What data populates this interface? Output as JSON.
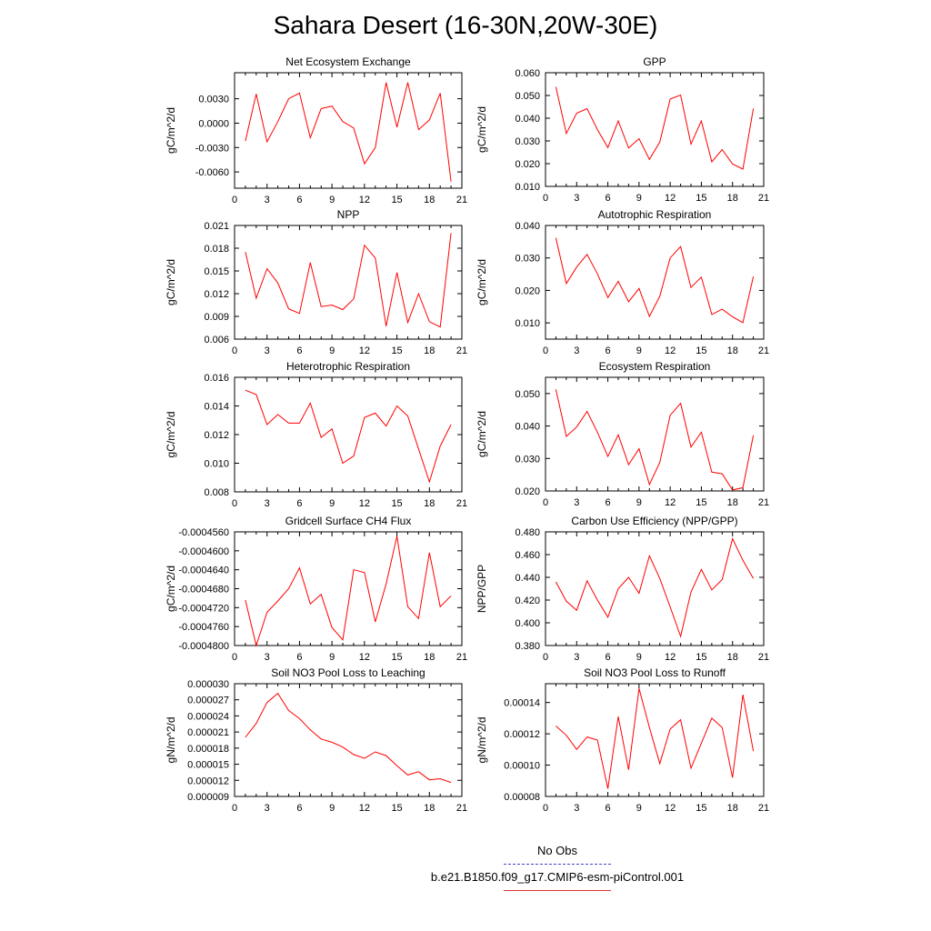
{
  "title": "Sahara Desert (16-30N,20W-30E)",
  "legend": {
    "entries": [
      {
        "label": "No Obs",
        "color": "#4444cc",
        "style": "dashed"
      },
      {
        "label": "b.e21.B1850.f09_g17.CMIP6-esm-piControl.001",
        "color": "#dd3333",
        "style": "solid"
      }
    ]
  },
  "chart_data": [
    {
      "type": "line",
      "title": "Net Ecosystem Exchange",
      "ylabel": "gC/m^2/d",
      "xlim": [
        0,
        21
      ],
      "xticks": [
        "0",
        "3",
        "6",
        "9",
        "12",
        "15",
        "18",
        "21"
      ],
      "ylim": [
        -0.008,
        0.0062
      ],
      "yticks": [
        "-0.0060",
        "-0.0030",
        "0.0000",
        "0.0030"
      ],
      "ytick_values": [
        -0.006,
        -0.003,
        0.0,
        0.003
      ],
      "series": [
        {
          "color": "#ff0000",
          "x": [
            1,
            2,
            3,
            4,
            5,
            6,
            7,
            8,
            9,
            10,
            11,
            12,
            13,
            14,
            15,
            16,
            17,
            18,
            19,
            20
          ],
          "y": [
            -0.0022,
            0.0036,
            -0.0023,
            0.0002,
            0.003,
            0.0037,
            -0.0018,
            0.0018,
            0.0021,
            0.0002,
            -0.0006,
            -0.005,
            -0.003,
            0.005,
            -0.0005,
            0.005,
            -0.0008,
            0.0004,
            0.0037,
            -0.0072
          ]
        }
      ]
    },
    {
      "type": "line",
      "title": "GPP",
      "ylabel": "gC/m^2/d",
      "xlim": [
        0,
        21
      ],
      "xticks": [
        "0",
        "3",
        "6",
        "9",
        "12",
        "15",
        "18",
        "21"
      ],
      "ylim": [
        0.01,
        0.06
      ],
      "yticks": [
        "0.010",
        "0.020",
        "0.030",
        "0.040",
        "0.050",
        "0.060"
      ],
      "ytick_values": [
        0.01,
        0.02,
        0.03,
        0.04,
        0.05,
        0.06
      ],
      "series": [
        {
          "color": "#ff0000",
          "x": [
            1,
            2,
            3,
            4,
            5,
            6,
            7,
            8,
            9,
            10,
            11,
            12,
            13,
            14,
            15,
            16,
            17,
            18,
            19,
            20
          ],
          "y": [
            0.0538,
            0.0333,
            0.0422,
            0.0442,
            0.035,
            0.0271,
            0.0388,
            0.0269,
            0.031,
            0.0219,
            0.0295,
            0.0484,
            0.0502,
            0.0286,
            0.0388,
            0.0208,
            0.0262,
            0.0199,
            0.0176,
            0.0443
          ]
        }
      ]
    },
    {
      "type": "line",
      "title": "NPP",
      "ylabel": "gC/m^2/d",
      "xlim": [
        0,
        21
      ],
      "xticks": [
        "0",
        "3",
        "6",
        "9",
        "12",
        "15",
        "18",
        "21"
      ],
      "ylim": [
        0.006,
        0.021
      ],
      "yticks": [
        "0.006",
        "0.009",
        "0.012",
        "0.015",
        "0.018",
        "0.021"
      ],
      "ytick_values": [
        0.006,
        0.009,
        0.012,
        0.015,
        0.018,
        0.021
      ],
      "series": [
        {
          "color": "#ff0000",
          "x": [
            1,
            2,
            3,
            4,
            5,
            6,
            7,
            8,
            9,
            10,
            11,
            12,
            13,
            14,
            15,
            16,
            17,
            18,
            19,
            20
          ],
          "y": [
            0.0175,
            0.0114,
            0.0153,
            0.0134,
            0.01,
            0.0094,
            0.0161,
            0.0103,
            0.0105,
            0.0099,
            0.0113,
            0.0184,
            0.0167,
            0.0077,
            0.0148,
            0.0082,
            0.012,
            0.0083,
            0.0076,
            0.02
          ]
        }
      ]
    },
    {
      "type": "line",
      "title": "Autotrophic Respiration",
      "ylabel": "gC/m^2/d",
      "xlim": [
        0,
        21
      ],
      "xticks": [
        "0",
        "3",
        "6",
        "9",
        "12",
        "15",
        "18",
        "21"
      ],
      "ylim": [
        0.005,
        0.04
      ],
      "yticks": [
        "0.010",
        "0.020",
        "0.030",
        "0.040"
      ],
      "ytick_values": [
        0.01,
        0.02,
        0.03,
        0.04
      ],
      "series": [
        {
          "color": "#ff0000",
          "x": [
            1,
            2,
            3,
            4,
            5,
            6,
            7,
            8,
            9,
            10,
            11,
            12,
            13,
            14,
            15,
            16,
            17,
            18,
            19,
            20
          ],
          "y": [
            0.0362,
            0.0221,
            0.0272,
            0.0311,
            0.0251,
            0.0178,
            0.0228,
            0.0165,
            0.0206,
            0.012,
            0.0182,
            0.03,
            0.0335,
            0.0209,
            0.0241,
            0.0126,
            0.0142,
            0.0119,
            0.0101,
            0.0243
          ]
        }
      ]
    },
    {
      "type": "line",
      "title": "Heterotrophic Respiration",
      "ylabel": "gC/m^2/d",
      "xlim": [
        0,
        21
      ],
      "xticks": [
        "0",
        "3",
        "6",
        "9",
        "12",
        "15",
        "18",
        "21"
      ],
      "ylim": [
        0.008,
        0.016
      ],
      "yticks": [
        "0.008",
        "0.010",
        "0.012",
        "0.014",
        "0.016"
      ],
      "ytick_values": [
        0.008,
        0.01,
        0.012,
        0.014,
        0.016
      ],
      "series": [
        {
          "color": "#ff0000",
          "x": [
            1,
            2,
            3,
            4,
            5,
            6,
            7,
            8,
            9,
            10,
            11,
            12,
            13,
            14,
            15,
            16,
            17,
            18,
            19,
            20
          ],
          "y": [
            0.0151,
            0.0148,
            0.0127,
            0.0134,
            0.0128,
            0.0128,
            0.0142,
            0.0118,
            0.0124,
            0.01,
            0.0105,
            0.0132,
            0.0135,
            0.0126,
            0.014,
            0.0133,
            0.011,
            0.0087,
            0.0112,
            0.0127
          ]
        }
      ]
    },
    {
      "type": "line",
      "title": "Ecosystem Respiration",
      "ylabel": "gC/m^2/d",
      "xlim": [
        0,
        21
      ],
      "xticks": [
        "0",
        "3",
        "6",
        "9",
        "12",
        "15",
        "18",
        "21"
      ],
      "ylim": [
        0.02,
        0.055
      ],
      "yticks": [
        "0.020",
        "0.030",
        "0.040",
        "0.050"
      ],
      "ytick_values": [
        0.02,
        0.03,
        0.04,
        0.05
      ],
      "series": [
        {
          "color": "#ff0000",
          "x": [
            1,
            2,
            3,
            4,
            5,
            6,
            7,
            8,
            9,
            10,
            11,
            12,
            13,
            14,
            15,
            16,
            17,
            18,
            19,
            20
          ],
          "y": [
            0.0513,
            0.0368,
            0.0397,
            0.0445,
            0.0381,
            0.0306,
            0.0373,
            0.0281,
            0.033,
            0.022,
            0.0288,
            0.0433,
            0.047,
            0.0335,
            0.0381,
            0.0258,
            0.0253,
            0.0203,
            0.021,
            0.0371
          ]
        }
      ]
    },
    {
      "type": "line",
      "title": "Gridcell Surface CH4 Flux",
      "ylabel": "gC/m^2/d",
      "xlim": [
        0,
        21
      ],
      "xticks": [
        "0",
        "3",
        "6",
        "9",
        "12",
        "15",
        "18",
        "21"
      ],
      "ylim": [
        -0.00048,
        -0.000456
      ],
      "yticks": [
        "-0.0004800",
        "-0.0004760",
        "-0.0004720",
        "-0.0004680",
        "-0.0004640",
        "-0.0004600",
        "-0.0004560"
      ],
      "ytick_values": [
        -0.00048,
        -0.000476,
        -0.000472,
        -0.000468,
        -0.000464,
        -0.00046,
        -0.000456
      ],
      "series": [
        {
          "color": "#ff0000",
          "x": [
            1,
            2,
            3,
            4,
            5,
            6,
            7,
            8,
            9,
            10,
            11,
            12,
            13,
            14,
            15,
            16,
            17,
            18,
            19,
            20
          ],
          "y": [
            -0.0004704,
            -0.00048,
            -0.000473,
            -0.0004706,
            -0.000468,
            -0.0004636,
            -0.0004712,
            -0.0004692,
            -0.0004762,
            -0.0004788,
            -0.000464,
            -0.0004646,
            -0.000475,
            -0.000467,
            -0.0004569,
            -0.0004718,
            -0.0004743,
            -0.0004604,
            -0.0004718,
            -0.0004695
          ]
        }
      ]
    },
    {
      "type": "line",
      "title": "Carbon Use Efficiency (NPP/GPP)",
      "ylabel": "NPP/GPP",
      "xlim": [
        0,
        21
      ],
      "xticks": [
        "0",
        "3",
        "6",
        "9",
        "12",
        "15",
        "18",
        "21"
      ],
      "ylim": [
        0.38,
        0.48
      ],
      "yticks": [
        "0.380",
        "0.400",
        "0.420",
        "0.440",
        "0.460",
        "0.480"
      ],
      "ytick_values": [
        0.38,
        0.4,
        0.42,
        0.44,
        0.46,
        0.48
      ],
      "series": [
        {
          "color": "#ff0000",
          "x": [
            1,
            2,
            3,
            4,
            5,
            6,
            7,
            8,
            9,
            10,
            11,
            12,
            13,
            14,
            15,
            16,
            17,
            18,
            19,
            20
          ],
          "y": [
            0.436,
            0.419,
            0.411,
            0.437,
            0.42,
            0.405,
            0.43,
            0.44,
            0.426,
            0.459,
            0.439,
            0.414,
            0.388,
            0.427,
            0.447,
            0.429,
            0.438,
            0.474,
            0.455,
            0.439
          ]
        }
      ]
    },
    {
      "type": "line",
      "title": "Soil NO3 Pool Loss to Leaching",
      "ylabel": "gN/m^2/d",
      "xlim": [
        0,
        21
      ],
      "xticks": [
        "0",
        "3",
        "6",
        "9",
        "12",
        "15",
        "18",
        "21"
      ],
      "ylim": [
        9e-06,
        3e-05
      ],
      "yticks": [
        "0.000009",
        "0.000012",
        "0.000015",
        "0.000018",
        "0.000021",
        "0.000024",
        "0.000027",
        "0.000030"
      ],
      "ytick_values": [
        9e-06,
        1.2e-05,
        1.5e-05,
        1.8e-05,
        2.1e-05,
        2.4e-05,
        2.7e-05,
        3e-05
      ],
      "series": [
        {
          "color": "#ff0000",
          "x": [
            1,
            2,
            3,
            4,
            5,
            6,
            7,
            8,
            9,
            10,
            11,
            12,
            13,
            14,
            15,
            16,
            17,
            18,
            19,
            20
          ],
          "y": [
            2e-05,
            2.26e-05,
            2.65e-05,
            2.82e-05,
            2.5e-05,
            2.35e-05,
            2.14e-05,
            1.97e-05,
            1.91e-05,
            1.82e-05,
            1.68e-05,
            1.61e-05,
            1.73e-05,
            1.66e-05,
            1.47e-05,
            1.3e-05,
            1.36e-05,
            1.21e-05,
            1.23e-05,
            1.16e-05
          ]
        }
      ]
    },
    {
      "type": "line",
      "title": "Soil NO3 Pool Loss to Runoff",
      "ylabel": "gN/m^2/d",
      "xlim": [
        0,
        21
      ],
      "xticks": [
        "0",
        "3",
        "6",
        "9",
        "12",
        "15",
        "18",
        "21"
      ],
      "ylim": [
        8e-05,
        0.000152
      ],
      "yticks": [
        "0.00008",
        "0.00010",
        "0.00012",
        "0.00014"
      ],
      "ytick_values": [
        8e-05,
        0.0001,
        0.00012,
        0.00014
      ],
      "series": [
        {
          "color": "#ff0000",
          "x": [
            1,
            2,
            3,
            4,
            5,
            6,
            7,
            8,
            9,
            10,
            11,
            12,
            13,
            14,
            15,
            16,
            17,
            18,
            19,
            20
          ],
          "y": [
            0.000125,
            0.000119,
            0.00011,
            0.000118,
            0.000116,
            8.5e-05,
            0.000131,
            9.7e-05,
            0.000149,
            0.000124,
            0.000101,
            0.000123,
            0.000129,
            9.8e-05,
            0.000114,
            0.00013,
            0.000124,
            9.2e-05,
            0.000145,
            0.000109
          ]
        }
      ]
    }
  ]
}
